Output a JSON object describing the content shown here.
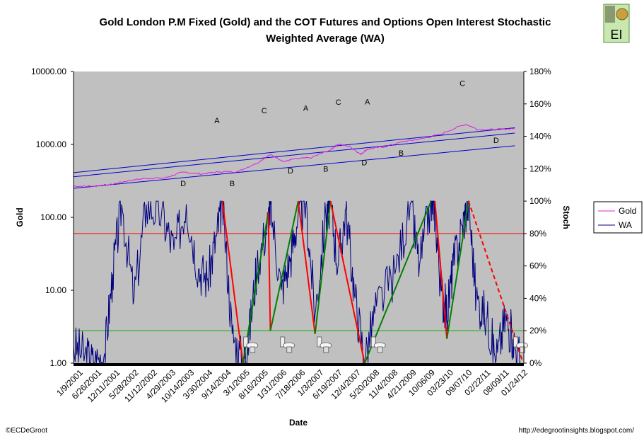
{
  "chart_data": {
    "type": "line",
    "title": "Gold London P.M Fixed (Gold) and the COT Futures and Options Open Interest Stochastic Weighted Average (WA)",
    "title_lines": [
      "Gold London P.M Fixed (Gold) and the COT Futures and Options Open Interest Stochastic",
      "Weighted Average (WA)"
    ],
    "xlabel": "Date",
    "ylabel": "Gold",
    "y2label": "Stoch",
    "y_scale": "log",
    "ylim": [
      1,
      10000
    ],
    "y2lim": [
      0,
      180
    ],
    "y_ticks": [
      "10000.00",
      "1000.00",
      "100.00",
      "10.00",
      "1.00"
    ],
    "y2_ticks": [
      "180%",
      "160%",
      "140%",
      "120%",
      "100%",
      "80%",
      "60%",
      "40%",
      "20%",
      "0%"
    ],
    "x_ticks": [
      "1/9/2001",
      "6/26/2001",
      "12/11/2001",
      "5/28/2002",
      "11/12/2002",
      "4/29/2003",
      "10/14/2003",
      "3/30/2004",
      "9/14/2004",
      "3/1/2005",
      "8/16/2005",
      "1/31/2006",
      "7/18/2006",
      "1/3/2007",
      "6/19/2007",
      "12/4/2007",
      "5/20/2008",
      "11/4/2008",
      "4/21/2009",
      "10/06/09",
      "03/23/10",
      "09/07/10",
      "02/22/11",
      "08/09/11",
      "01/24/12"
    ],
    "x_range": [
      "2001-01-09",
      "2013-04-01"
    ],
    "legend_position": "right",
    "grid": false,
    "series": [
      {
        "name": "Gold",
        "axis": "left",
        "color": "#e020e0",
        "x": [
          "2001-01-09",
          "2001-07-01",
          "2002-01-01",
          "2002-07-01",
          "2003-01-01",
          "2003-07-01",
          "2004-01-01",
          "2004-07-01",
          "2005-01-01",
          "2005-07-01",
          "2006-01-01",
          "2006-05-12",
          "2006-10-01",
          "2007-01-01",
          "2007-07-01",
          "2008-01-01",
          "2008-03-17",
          "2008-07-15",
          "2008-10-24",
          "2009-01-01",
          "2009-07-01",
          "2010-01-01",
          "2010-07-01",
          "2011-01-01",
          "2011-09-05",
          "2012-01-01",
          "2012-07-01",
          "2013-01-01"
        ],
        "values": [
          268,
          267,
          279,
          317,
          343,
          346,
          416,
          393,
          422,
          424,
          552,
          720,
          580,
          630,
          660,
          840,
          1011,
          930,
          730,
          860,
          935,
          1100,
          1200,
          1380,
          1895,
          1600,
          1600,
          1660
        ]
      },
      {
        "name": "WA",
        "axis": "right",
        "color": "#000080",
        "x": [
          "2001-01-09",
          "2001-05-01",
          "2001-08-01",
          "2001-11-15",
          "2002-02-01",
          "2002-05-01",
          "2002-09-01",
          "2003-01-01",
          "2003-06-01",
          "2003-10-01",
          "2004-02-01",
          "2004-06-01",
          "2004-09-01",
          "2004-12-01",
          "2005-01-24",
          "2005-05-01",
          "2005-08-16",
          "2005-10-01",
          "2006-01-01",
          "2006-04-24",
          "2006-05-15",
          "2006-09-01",
          "2006-12-01",
          "2007-02-15",
          "2007-05-01",
          "2007-08-01",
          "2007-11-15",
          "2008-01-01",
          "2008-03-15",
          "2008-06-01",
          "2008-09-01",
          "2008-12-05",
          "2009-04-01",
          "2009-10-01",
          "2010-03-01",
          "2010-06-01",
          "2010-09-25",
          "2010-11-01",
          "2011-01-01",
          "2011-02-28",
          "2011-05-01",
          "2011-08-01",
          "2011-10-01",
          "2011-12-15",
          "2012-04-01",
          "2012-07-01",
          "2012-10-01",
          "2012-12-15",
          "2013-03-01"
        ],
        "values": [
          10,
          5,
          0,
          6,
          55,
          98,
          40,
          98,
          92,
          70,
          98,
          58,
          52,
          80,
          100,
          18,
          0,
          10,
          60,
          88,
          98,
          45,
          65,
          92,
          98,
          30,
          92,
          98,
          60,
          95,
          40,
          2,
          35,
          55,
          98,
          60,
          100,
          95,
          45,
          30,
          60,
          85,
          100,
          40,
          28,
          2,
          28,
          15,
          0
        ]
      }
    ],
    "reference_lines": [
      {
        "axis": "right",
        "value": 80,
        "color": "#ff0000"
      },
      {
        "axis": "right",
        "value": 20,
        "color": "#00b000"
      }
    ],
    "gold_channel_lines": {
      "color": "#0000cc",
      "lines": [
        {
          "x": [
            "2001-01-09",
            "2013-01-01"
          ],
          "values": [
            410,
            1690
          ]
        },
        {
          "x": [
            "2001-01-09",
            "2013-01-01"
          ],
          "values": [
            360,
            1430
          ]
        },
        {
          "x": [
            "2001-01-09",
            "2013-01-01"
          ],
          "values": [
            250,
            960
          ]
        }
      ]
    },
    "trend_lines": [
      {
        "color": "#ff0000",
        "style": "solid",
        "x": [
          "2005-01-24",
          "2005-08-16"
        ],
        "values": [
          100,
          0
        ]
      },
      {
        "color": "#008000",
        "style": "solid",
        "x": [
          "2005-08-16",
          "2006-04-24"
        ],
        "values": [
          0,
          93
        ]
      },
      {
        "color": "#ff0000",
        "style": "solid",
        "x": [
          "2006-04-24",
          "2006-05-15"
        ],
        "values": [
          93,
          20
        ]
      },
      {
        "color": "#008000",
        "style": "solid",
        "x": [
          "2006-05-15",
          "2007-02-15"
        ],
        "values": [
          20,
          100
        ]
      },
      {
        "color": "#ff0000",
        "style": "solid",
        "x": [
          "2007-02-15",
          "2007-08-01"
        ],
        "values": [
          100,
          18
        ]
      },
      {
        "color": "#008000",
        "style": "solid",
        "x": [
          "2007-08-01",
          "2008-01-01"
        ],
        "values": [
          18,
          100
        ]
      },
      {
        "color": "#ff0000",
        "style": "solid",
        "x": [
          "2008-01-01",
          "2008-12-05"
        ],
        "values": [
          100,
          0
        ]
      },
      {
        "color": "#008000",
        "style": "solid",
        "x": [
          "2008-12-05",
          "2010-09-25"
        ],
        "values": [
          0,
          100
        ]
      },
      {
        "color": "#ff0000",
        "style": "solid",
        "x": [
          "2010-11-01",
          "2011-02-28"
        ],
        "values": [
          100,
          15
        ]
      },
      {
        "color": "#008000",
        "style": "solid",
        "x": [
          "2011-02-28",
          "2011-10-01"
        ],
        "values": [
          15,
          100
        ]
      },
      {
        "color": "#ff0000",
        "style": "dashed",
        "x": [
          "2011-10-01",
          "2013-03-15"
        ],
        "values": [
          100,
          2
        ]
      }
    ],
    "annotations": [
      {
        "text": "A",
        "x": "2004-12-01",
        "y": 1950
      },
      {
        "text": "C",
        "x": "2006-03-15",
        "y": 2680
      },
      {
        "text": "A",
        "x": "2007-05-01",
        "y": 2900
      },
      {
        "text": "C",
        "x": "2008-03-20",
        "y": 3500
      },
      {
        "text": "A",
        "x": "2009-01-01",
        "y": 3550
      },
      {
        "text": "C",
        "x": "2011-08-01",
        "y": 6300
      },
      {
        "text": "D",
        "x": "2012-07-01",
        "y": 1050
      },
      {
        "text": "D",
        "x": "2004-01-01",
        "y": 268
      },
      {
        "text": "B",
        "x": "2005-05-01",
        "y": 268
      },
      {
        "text": "D",
        "x": "2006-12-01",
        "y": 400
      },
      {
        "text": "B",
        "x": "2007-11-15",
        "y": 425
      },
      {
        "text": "D",
        "x": "2008-12-01",
        "y": 520
      },
      {
        "text": "B",
        "x": "2009-12-01",
        "y": 700
      }
    ],
    "toilet_icon_dates": [
      "2005-11-01",
      "2006-11-01",
      "2007-11-01",
      "2009-04-20",
      "2013-03-01"
    ]
  },
  "logo_text": "EI",
  "footer": {
    "left": "©ECDeGroot",
    "right": "http://edegrootinsights.blogspot.com/"
  },
  "colors": {
    "plot_bg": "#c0c0c0",
    "gold": "#e020e0",
    "wa": "#000080",
    "channel": "#0000cc",
    "ref80": "#ff0000",
    "ref20": "#00b000",
    "down_trend": "#ff0000",
    "up_trend": "#008000"
  }
}
